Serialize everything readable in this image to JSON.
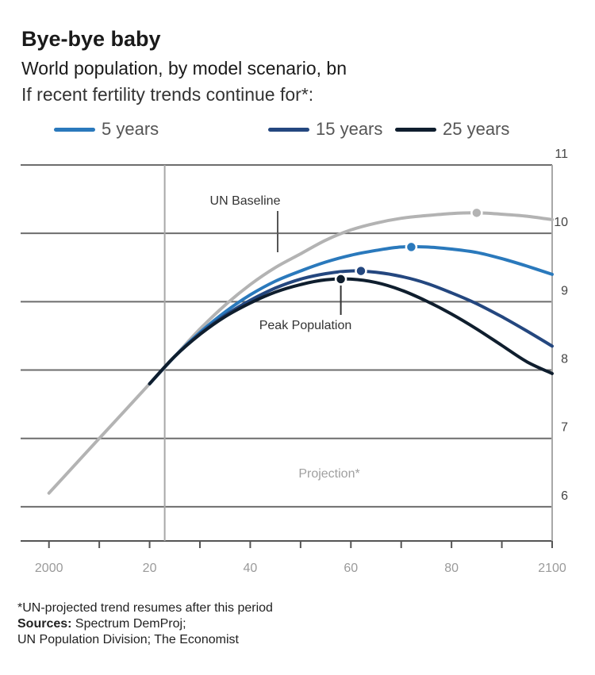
{
  "header": {
    "title": "Bye-bye baby",
    "subtitle": "World population, by model scenario, bn",
    "subtitle2": "If recent fertility trends continue for*:"
  },
  "legend": [
    {
      "label": "5 years",
      "color": "#2a79bc"
    },
    {
      "label": "15 years",
      "color": "#24477f"
    },
    {
      "label": "25 years",
      "color": "#0f1e2e"
    }
  ],
  "footer": {
    "note": "*UN-projected trend resumes after this period",
    "sources_label": "Sources:",
    "sources_line1": " Spectrum DemProj;",
    "sources_line2": "UN Population Division; The Economist"
  },
  "chart_data": {
    "type": "line",
    "xlim": [
      1995,
      2100
    ],
    "ylim": [
      5.5,
      11
    ],
    "yticks": [
      6,
      7,
      8,
      9,
      10,
      11
    ],
    "xticks": [
      2000,
      2020,
      2040,
      2060,
      2080,
      2100
    ],
    "xtick_labels": [
      "2000",
      "20",
      "40",
      "60",
      "80",
      "2100"
    ],
    "projection_start": 2023,
    "annotations": {
      "un_baseline": "UN Baseline",
      "peak_population": "Peak Population",
      "projection": "Projection*"
    },
    "series": [
      {
        "name": "UN Baseline",
        "color": "#b3b3b3",
        "x": [
          2000,
          2005,
          2010,
          2015,
          2020,
          2025,
          2030,
          2035,
          2040,
          2045,
          2050,
          2055,
          2060,
          2065,
          2070,
          2075,
          2080,
          2085,
          2090,
          2095,
          2100
        ],
        "y": [
          6.2,
          6.6,
          7.0,
          7.4,
          7.8,
          8.2,
          8.6,
          8.95,
          9.25,
          9.5,
          9.7,
          9.9,
          10.05,
          10.15,
          10.22,
          10.26,
          10.29,
          10.3,
          10.28,
          10.25,
          10.2
        ],
        "peak": {
          "x": 2085,
          "y": 10.3
        }
      },
      {
        "name": "5 years",
        "color": "#2a79bc",
        "x": [
          2020,
          2025,
          2030,
          2035,
          2040,
          2045,
          2050,
          2055,
          2060,
          2065,
          2070,
          2075,
          2080,
          2085,
          2090,
          2095,
          2100
        ],
        "y": [
          7.8,
          8.2,
          8.55,
          8.85,
          9.1,
          9.3,
          9.45,
          9.58,
          9.68,
          9.75,
          9.8,
          9.8,
          9.77,
          9.72,
          9.63,
          9.52,
          9.4
        ],
        "peak": {
          "x": 2072,
          "y": 9.8
        }
      },
      {
        "name": "15 years",
        "color": "#24477f",
        "x": [
          2020,
          2025,
          2030,
          2035,
          2040,
          2045,
          2050,
          2055,
          2060,
          2065,
          2070,
          2075,
          2080,
          2085,
          2090,
          2095,
          2100
        ],
        "y": [
          7.8,
          8.2,
          8.53,
          8.8,
          9.02,
          9.2,
          9.33,
          9.41,
          9.45,
          9.43,
          9.37,
          9.27,
          9.13,
          8.97,
          8.78,
          8.57,
          8.35
        ],
        "peak": {
          "x": 2062,
          "y": 9.45
        }
      },
      {
        "name": "25 years",
        "color": "#0f1e2e",
        "x": [
          2020,
          2025,
          2030,
          2035,
          2040,
          2045,
          2050,
          2055,
          2060,
          2065,
          2070,
          2075,
          2080,
          2085,
          2090,
          2095,
          2100
        ],
        "y": [
          7.8,
          8.2,
          8.52,
          8.78,
          8.98,
          9.14,
          9.25,
          9.32,
          9.33,
          9.28,
          9.17,
          9.01,
          8.82,
          8.6,
          8.36,
          8.12,
          7.95
        ],
        "peak": {
          "x": 2058,
          "y": 9.33
        }
      }
    ]
  }
}
